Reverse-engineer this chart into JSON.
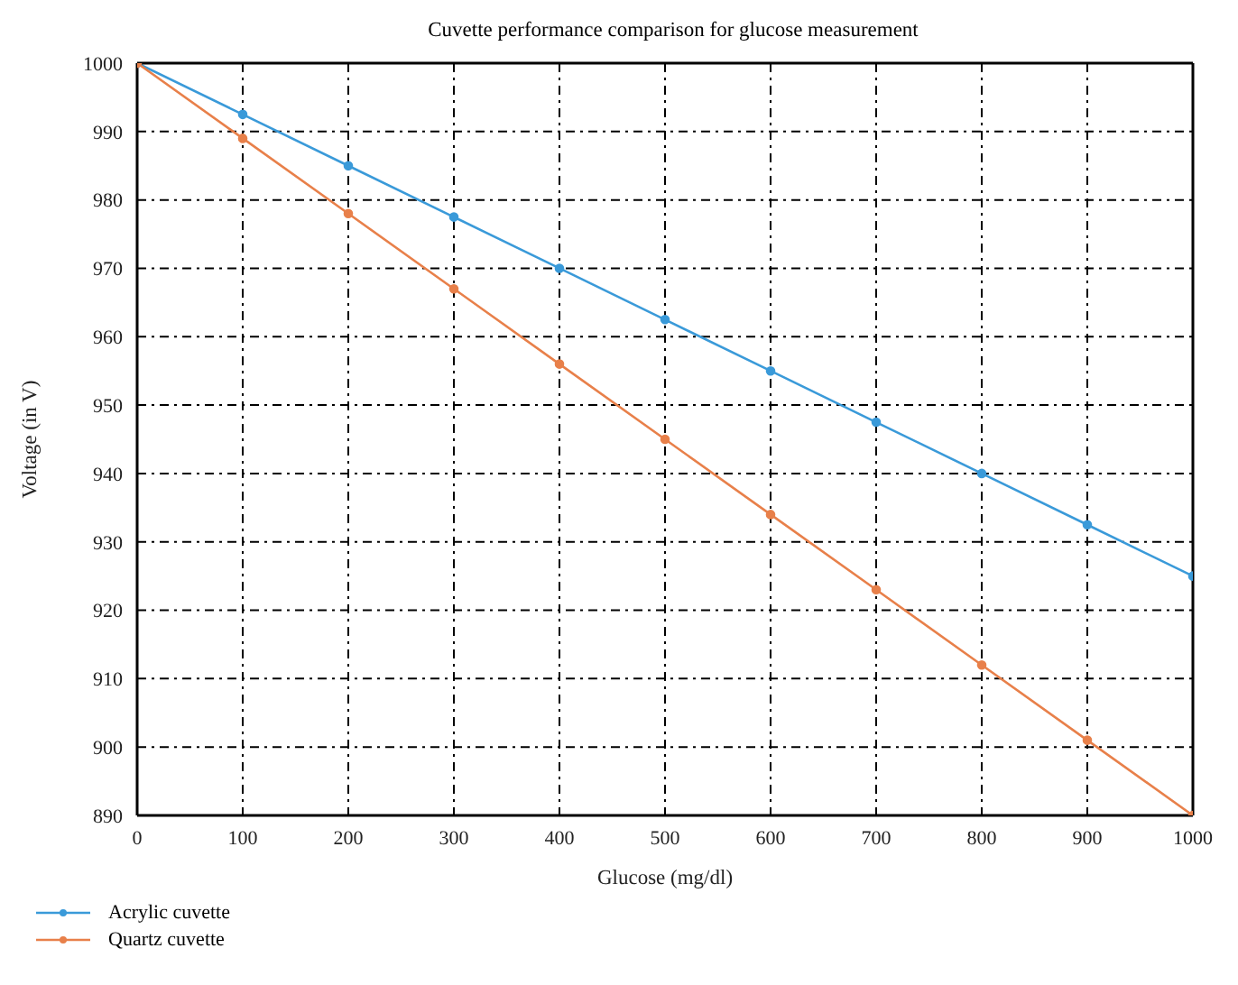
{
  "chart_data": {
    "type": "line",
    "title": "Cuvette performance comparison for glucose measurement",
    "xlabel": "Glucose (mg/dl)",
    "ylabel": "Voltage (in V)",
    "x": [
      0,
      100,
      200,
      300,
      400,
      500,
      600,
      700,
      800,
      900,
      1000
    ],
    "series": [
      {
        "name": "Acrylic cuvette",
        "color": "#3a9ad9",
        "values": [
          1000,
          992.5,
          985,
          977.5,
          970,
          962.5,
          955,
          947.5,
          940,
          932.5,
          925
        ]
      },
      {
        "name": "Quartz cuvette",
        "color": "#e8804a",
        "values": [
          1000,
          989,
          978,
          967,
          956,
          945,
          934,
          923,
          912,
          901,
          890
        ]
      }
    ],
    "xlim": [
      0,
      1000
    ],
    "xticks": [
      0,
      100,
      200,
      300,
      400,
      500,
      600,
      700,
      800,
      900,
      1000
    ],
    "ylim": [
      890,
      1000
    ],
    "yticks": [
      890,
      900,
      910,
      920,
      930,
      940,
      950,
      960,
      970,
      980,
      990,
      1000
    ],
    "grid": true,
    "legend": "bottom left",
    "marker": "circle",
    "line_style": "solid"
  }
}
